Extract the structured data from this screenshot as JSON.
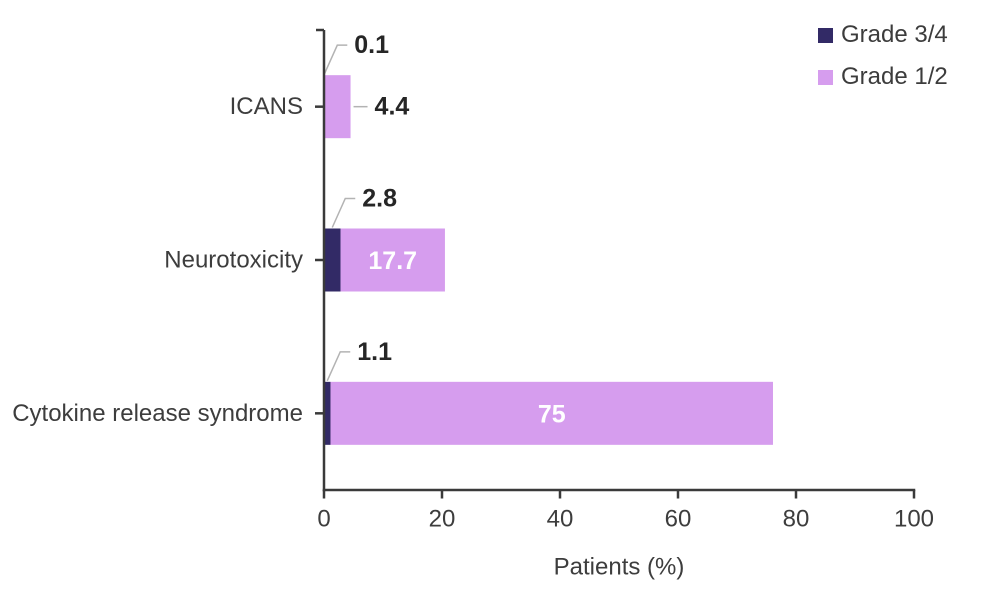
{
  "chart_data": {
    "type": "bar",
    "orientation": "horizontal",
    "stacked": true,
    "title": "",
    "categories": [
      "ICANS",
      "Neurotoxicity",
      "Cytokine release syndrome"
    ],
    "series": [
      {
        "name": "Grade 3/4",
        "color": "#322a66",
        "values": [
          0.1,
          2.8,
          1.1
        ]
      },
      {
        "name": "Grade 1/2",
        "color": "#d69dee",
        "values": [
          4.4,
          17.7,
          75
        ]
      }
    ],
    "value_labels": {
      "grade_3_4": [
        "0.1",
        "2.8",
        "1.1"
      ],
      "grade_1_2": [
        "4.4",
        "17.7",
        "75"
      ]
    },
    "xlabel": "Patients (%)",
    "xlim": [
      0,
      100
    ],
    "xticks": [
      0,
      20,
      40,
      60,
      80,
      100
    ],
    "grid": false,
    "legend_position": "top-right"
  },
  "colors": {
    "axis": "#3a3a3a",
    "tick_text": "#3d3d3d",
    "category_text": "#3d3d3d",
    "value_label_text": "#262626",
    "inside_label_text": "#ffffff",
    "leader_line": "#b3b3b3",
    "background": "#ffffff"
  }
}
